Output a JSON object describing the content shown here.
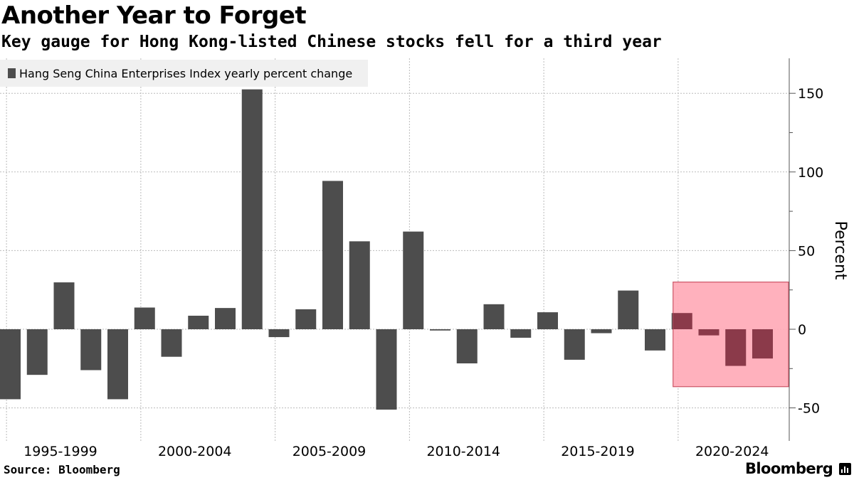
{
  "header": {
    "title": "Another Year to Forget",
    "subtitle": "Key gauge for Hong Kong-listed Chinese stocks fell for a third year"
  },
  "footer": {
    "source": "Source: Bloomberg",
    "brand": "Bloomberg"
  },
  "chart_data": {
    "type": "bar",
    "title": "Another Year to Forget",
    "subtitle": "Key gauge for Hong Kong-listed Chinese stocks fell for a third year",
    "ylabel": "Percent",
    "xlabel": "",
    "legend": {
      "label": "Hang Seng China Enterprises Index yearly percent change",
      "placement": "top-left"
    },
    "ylim": [
      -70,
      172
    ],
    "y_ticks": [
      150,
      100,
      50,
      0,
      -50
    ],
    "y_axis_side": "right",
    "grid": true,
    "x": [
      1995,
      1996,
      1997,
      1998,
      1999,
      2000,
      2001,
      2002,
      2003,
      2004,
      2005,
      2006,
      2007,
      2008,
      2009,
      2010,
      2011,
      2012,
      2013,
      2014,
      2015,
      2016,
      2017,
      2018,
      2019,
      2020,
      2021,
      2022,
      2023,
      2024
    ],
    "values": [
      -44.5,
      -29,
      29.8,
      -26,
      -44.5,
      13.8,
      -17.5,
      8.6,
      13.5,
      152.5,
      -5,
      12.7,
      94.3,
      55.9,
      -51.1,
      62.1,
      -0.8,
      -21.7,
      15.9,
      -5.4,
      10.8,
      -19.4,
      -2.5,
      24.6,
      -13.5,
      10.3,
      -3.9,
      -23.3,
      -18.6,
      0
    ],
    "x_group_labels": [
      "1995-1999",
      "2000-2004",
      "2005-2009",
      "2010-2014",
      "2015-2019",
      "2020-2024"
    ],
    "colors": {
      "bar": "#4d4d4d",
      "highlight_fill": "#ffaab7",
      "highlight_stroke": "#cc5566",
      "bar_in_highlight": "#8b3a4a"
    },
    "highlight": {
      "from_year": 2021,
      "to_year": 2024,
      "y_range": [
        -36.5,
        30
      ]
    }
  }
}
